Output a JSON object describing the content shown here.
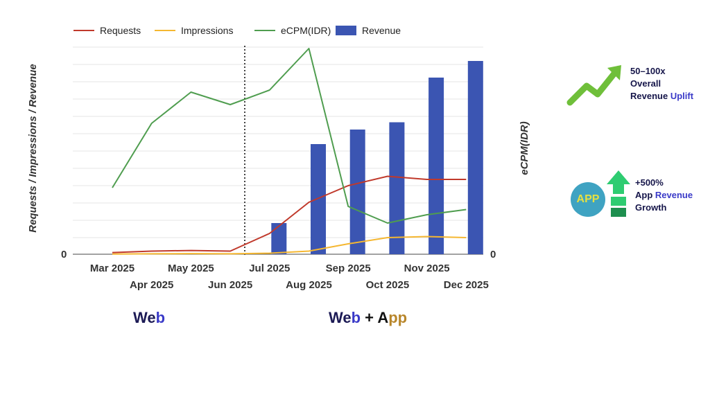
{
  "chart_data": {
    "type": "bar+line",
    "categories": [
      "Mar 2025",
      "Apr 2025",
      "May 2025",
      "Jun 2025",
      "Jul 2025",
      "Aug 2025",
      "Sep 2025",
      "Oct 2025",
      "Nov 2025",
      "Dec 2025"
    ],
    "left_axis": {
      "title": "Requests / Impressions / Revenue",
      "zero_label": "0",
      "ylim": [
        0,
        100
      ]
    },
    "right_axis": {
      "title": "eCPM(IDR)",
      "zero_label": "0",
      "ylim": [
        0,
        100
      ]
    },
    "series": [
      {
        "name": "Requests",
        "type": "line",
        "axis": "left",
        "color": "#c0392b",
        "values": [
          0.8,
          1.5,
          1.8,
          1.5,
          10,
          25,
          33,
          37.5,
          36,
          36
        ]
      },
      {
        "name": "Impressions",
        "type": "line",
        "axis": "left",
        "color": "#f5b731",
        "values": [
          0.1,
          0.2,
          0.3,
          0.2,
          0.5,
          1.5,
          5,
          8,
          8.5,
          8
        ]
      },
      {
        "name": "eCPM(IDR)",
        "type": "line",
        "axis": "right",
        "color": "#4f9d4f",
        "values": [
          32,
          63,
          78,
          72,
          79,
          99,
          23,
          15,
          19,
          21.5
        ]
      },
      {
        "name": "Revenue",
        "type": "bar",
        "axis": "left",
        "color": "#3b55b2",
        "values": [
          null,
          null,
          null,
          null,
          15,
          53,
          60,
          63.5,
          85,
          93
        ]
      }
    ],
    "divider_after": "Jun 2025",
    "legend_position": "top",
    "grid": true
  },
  "labels": {
    "web": {
      "part1": "We",
      "part2": "b"
    },
    "webapp": {
      "part1": "We",
      "part2": "b",
      "plus": " + ",
      "part3": "A",
      "part4": "pp"
    }
  },
  "callouts": {
    "uplift": {
      "line1": "50–100x",
      "line2": "Overall",
      "line3a": "Revenue ",
      "line3b": "Uplift"
    },
    "app_growth": {
      "badge": "APP",
      "line1": "+500%",
      "line2a": "App ",
      "line2b": "Revenue",
      "line3": "Growth"
    }
  },
  "colors": {
    "uplift_arrow": "#6fbf3a",
    "growth_arrow": "#2ecc71",
    "growth_bar_light": "#2ecc71",
    "growth_bar_dark": "#1e8f4f"
  },
  "icons": [
    "trend-up-arrow-icon",
    "app-badge-icon",
    "growth-up-arrow-icon"
  ]
}
